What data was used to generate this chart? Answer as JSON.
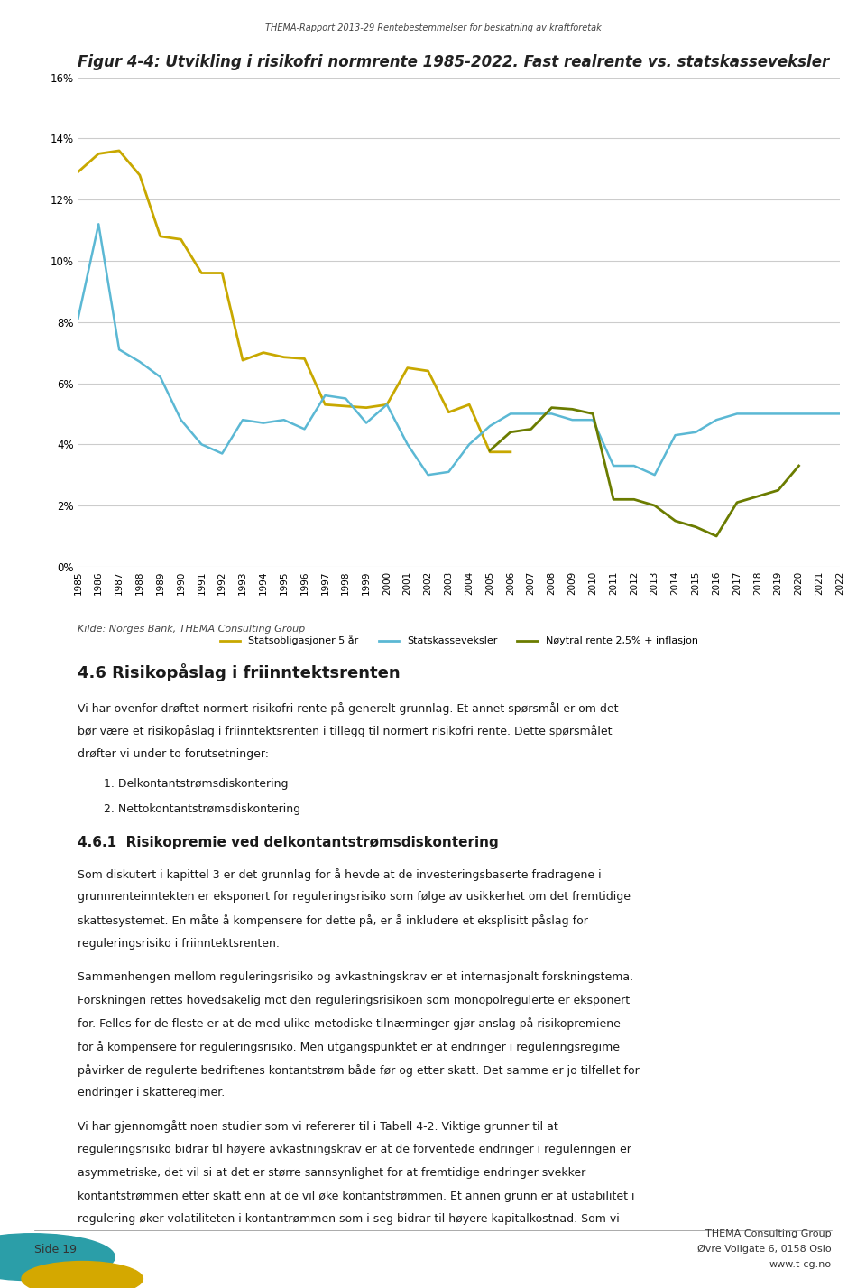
{
  "title": "Figur 4-4: Utvikling i risikofri normrente 1985-2022. Fast realrente vs. statskasseveksler",
  "header": "THEMA-Rapport 2013-29 Rentebestemmelser for beskatning av kraftforetak",
  "source": "Kilde: Norges Bank, THEMA Consulting Group",
  "years": [
    1985,
    1986,
    1987,
    1988,
    1989,
    1990,
    1991,
    1992,
    1993,
    1994,
    1995,
    1996,
    1997,
    1998,
    1999,
    2000,
    2001,
    2002,
    2003,
    2004,
    2005,
    2006,
    2007,
    2008,
    2009,
    2010,
    2011,
    2012,
    2013,
    2014,
    2015,
    2016,
    2017,
    2018,
    2019,
    2020,
    2021,
    2022
  ],
  "statsobligasjoner": [
    12.9,
    13.5,
    13.6,
    12.8,
    10.8,
    10.7,
    9.6,
    9.6,
    6.75,
    7.0,
    6.85,
    6.8,
    5.3,
    5.25,
    5.2,
    5.3,
    6.5,
    6.4,
    5.05,
    5.3,
    3.75,
    3.75,
    null,
    null,
    null,
    null,
    null,
    null,
    null,
    null,
    null,
    null,
    null,
    null,
    null,
    null,
    null,
    null
  ],
  "statskasseveksler": [
    8.1,
    11.2,
    7.1,
    6.7,
    6.2,
    4.8,
    4.0,
    3.7,
    4.8,
    4.7,
    4.8,
    4.5,
    5.6,
    5.5,
    4.7,
    5.3,
    4.0,
    3.0,
    3.1,
    4.0,
    4.6,
    5.0,
    5.0,
    5.0,
    4.8,
    4.8,
    3.3,
    3.3,
    3.0,
    4.3,
    4.4,
    4.8,
    5.0,
    5.0,
    5.0,
    5.0,
    5.0,
    5.0
  ],
  "noytral": [
    null,
    null,
    null,
    null,
    null,
    null,
    null,
    null,
    null,
    null,
    null,
    null,
    null,
    null,
    null,
    null,
    null,
    null,
    null,
    null,
    3.8,
    4.4,
    4.5,
    5.2,
    5.15,
    5.0,
    2.2,
    2.2,
    2.0,
    1.5,
    1.3,
    1.0,
    2.1,
    2.3,
    2.5,
    3.3,
    null,
    null
  ],
  "ylim": [
    0,
    0.16
  ],
  "yticks": [
    0,
    0.02,
    0.04,
    0.06,
    0.08,
    0.1,
    0.12,
    0.14,
    0.16
  ],
  "ytick_labels": [
    "0%",
    "2%",
    "4%",
    "6%",
    "8%",
    "10%",
    "12%",
    "14%",
    "16%"
  ],
  "color_statsobligasjoner": "#C8A800",
  "color_statskasseveksler": "#5BB8D4",
  "color_noytral": "#6B7C00",
  "legend_labels": [
    "Statsobligasjoner 5 år",
    "Statskasseveksler",
    "Nøytral rente 2,5% + inflasjon"
  ],
  "footer_left": "Side 19",
  "footer_right_line1": "THEMA Consulting Group",
  "footer_right_line2": "Øvre Vollgate 6, 0158 Oslo",
  "footer_right_line3": "www.t-cg.no",
  "section_title": "4.6 Risikopåslag i friinntektsrenten",
  "section_body1": "Vi har ovenfor drøftet normert risikofri rente på generelt grunnlag. Et annet spørsmål er om det\nbør være et risikopåslag i friinntektsrenten i tillegg til normert risikofri rente. Dette spørsmålet\ndrøfter vi under to forutsetninger:",
  "section_list": [
    "1. Delkontantstrømsdiskontering",
    "2. Nettokontantstrømsdiskontering"
  ],
  "section_461_title": "4.6.1  Risikopremie ved delkontantstrømsdiskontering",
  "section_461_body1": "Som diskutert i kapittel 3 er det grunnlag for å hevde at de investeringsbaserte fradragene i\ngrunnrenteinntekten er eksponert for reguleringsrisiko som følge av usikkerhet om det fremtidige\nskattesystemet. En måte å kompensere for dette på, er å inkludere et eksplisitt påslag for\nreguleringsrisiko i friinntektsrenten.",
  "section_461_body2": "Sammenhengen mellom reguleringsrisiko og avkastningskrav er et internasjonalt forskningstema.\nForskningen rettes hovedsakelig mot den reguleringsrisikoen som monopolregulerte er eksponert\nfor. Felles for de fleste er at de med ulike metodiske tilnærminger gjør anslag på risikopremiene\nfor å kompensere for reguleringsrisiko. Men utgangspunktet er at endringer i reguleringsregime\npåvirker de regulerte bedriftenes kontantstrøm både før og etter skatt. Det samme er jo tilfellet for\nendringer i skatteregimer.",
  "section_461_body3": "Vi har gjennomgått noen studier som vi refererer til i Tabell 4-2. Viktige grunner til at\nreguleringsrisiko bidrar til høyere avkastningskrav er at de forventede endringer i reguleringen er\nasymmetriske, det vil si at det er større sannsynlighet for at fremtidige endringer svekker\nkontantstrømmen etter skatt enn at de vil øke kontantstrømmen. Et annen grunn er at ustabilitet i\nregulering øker volatiliteten i kontantrømmen som i seg bidrar til høyere kapitalkostnad. Som vi"
}
